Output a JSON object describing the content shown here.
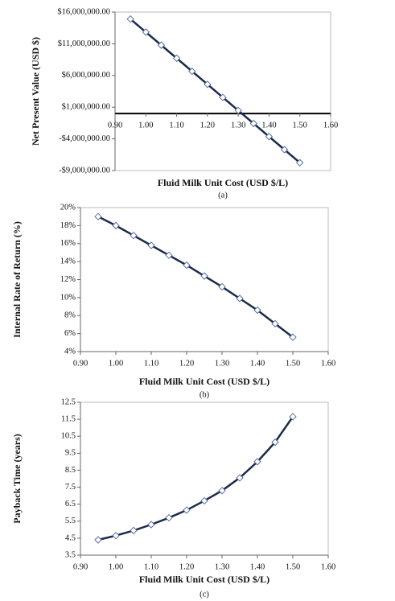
{
  "chart_data": [
    {
      "type": "line",
      "y_label": "Net Present Value (USD $)",
      "x_label": "Fluid Milk Unit Cost (USD $/L)",
      "caption": "(a)",
      "x": [
        0.95,
        1.0,
        1.05,
        1.1,
        1.15,
        1.2,
        1.25,
        1.3,
        1.35,
        1.4,
        1.45,
        1.5
      ],
      "series": [
        {
          "color": "#1c2a4a",
          "values": [
            14900000,
            12840000,
            10780000,
            8720000,
            6660000,
            4600000,
            2540000,
            480000,
            -1580000,
            -3640000,
            -5700000,
            -7760000
          ]
        }
      ],
      "xlim": [
        0.9,
        1.6
      ],
      "xticks": [
        {
          "value": 0.9,
          "label": "0.90"
        },
        {
          "value": 1.0,
          "label": "1.00"
        },
        {
          "value": 1.1,
          "label": "1.10"
        },
        {
          "value": 1.2,
          "label": "1.20"
        },
        {
          "value": 1.3,
          "label": "1.30"
        },
        {
          "value": 1.4,
          "label": "1.40"
        },
        {
          "value": 1.5,
          "label": "1.50"
        },
        {
          "value": 1.6,
          "label": "1.60"
        }
      ],
      "ylim": [
        -9000000,
        16000000
      ],
      "yticks": [
        {
          "value": -9000000,
          "label": "-$9,000,000.00"
        },
        {
          "value": -4000000,
          "label": "-$4,000,000.00"
        },
        {
          "value": 1000000,
          "label": "$1,000,000.00"
        },
        {
          "value": 6000000,
          "label": "$6,000,000.00"
        },
        {
          "value": 11000000,
          "label": "$11,000,000.00"
        },
        {
          "value": 16000000,
          "label": "$16,000,000.00"
        }
      ]
    },
    {
      "type": "line",
      "y_label": "Internal Rate of Return (%)",
      "x_label": "Fluid Milk Unit Cost (USD $/L)",
      "caption": "(b)",
      "x": [
        0.95,
        1.0,
        1.05,
        1.1,
        1.15,
        1.2,
        1.25,
        1.3,
        1.35,
        1.4,
        1.45,
        1.5
      ],
      "series": [
        {
          "color": "#1c2a4a",
          "values": [
            19.0,
            18.0,
            16.9,
            15.8,
            14.7,
            13.6,
            12.4,
            11.2,
            9.9,
            8.6,
            7.1,
            5.6
          ]
        }
      ],
      "xlim": [
        0.9,
        1.6
      ],
      "xticks": [
        {
          "value": 0.9,
          "label": "0.90"
        },
        {
          "value": 1.0,
          "label": "1.00"
        },
        {
          "value": 1.1,
          "label": "1.10"
        },
        {
          "value": 1.2,
          "label": "1.20"
        },
        {
          "value": 1.3,
          "label": "1.30"
        },
        {
          "value": 1.4,
          "label": "1.40"
        },
        {
          "value": 1.5,
          "label": "1.50"
        },
        {
          "value": 1.6,
          "label": "1.60"
        }
      ],
      "ylim": [
        4,
        20
      ],
      "yticks": [
        {
          "value": 4,
          "label": "4%"
        },
        {
          "value": 6,
          "label": "6%"
        },
        {
          "value": 8,
          "label": "8%"
        },
        {
          "value": 10,
          "label": "10%"
        },
        {
          "value": 12,
          "label": "12%"
        },
        {
          "value": 14,
          "label": "14%"
        },
        {
          "value": 16,
          "label": "16%"
        },
        {
          "value": 18,
          "label": "18%"
        },
        {
          "value": 20,
          "label": "20%"
        }
      ]
    },
    {
      "type": "line",
      "y_label": "Payback Time (years)",
      "x_label": "Fluid Milk Unit Cost (USD $/L)",
      "caption": "(c)",
      "x": [
        0.95,
        1.0,
        1.05,
        1.1,
        1.15,
        1.2,
        1.25,
        1.3,
        1.35,
        1.4,
        1.45,
        1.5
      ],
      "series": [
        {
          "color": "#1c2a4a",
          "values": [
            4.4,
            4.65,
            4.95,
            5.3,
            5.7,
            6.15,
            6.7,
            7.3,
            8.05,
            9.0,
            10.15,
            11.65
          ]
        }
      ],
      "xlim": [
        0.9,
        1.6
      ],
      "xticks": [
        {
          "value": 0.9,
          "label": "0.90"
        },
        {
          "value": 1.0,
          "label": "1.00"
        },
        {
          "value": 1.1,
          "label": "1.10"
        },
        {
          "value": 1.2,
          "label": "1.20"
        },
        {
          "value": 1.3,
          "label": "1.30"
        },
        {
          "value": 1.4,
          "label": "1.40"
        },
        {
          "value": 1.5,
          "label": "1.50"
        },
        {
          "value": 1.6,
          "label": "1.60"
        }
      ],
      "ylim": [
        3.5,
        12.5
      ],
      "yticks": [
        3.5,
        4.5,
        5.5,
        6.5,
        7.5,
        8.5,
        9.5,
        10.5,
        11.5,
        12.5
      ]
    }
  ]
}
